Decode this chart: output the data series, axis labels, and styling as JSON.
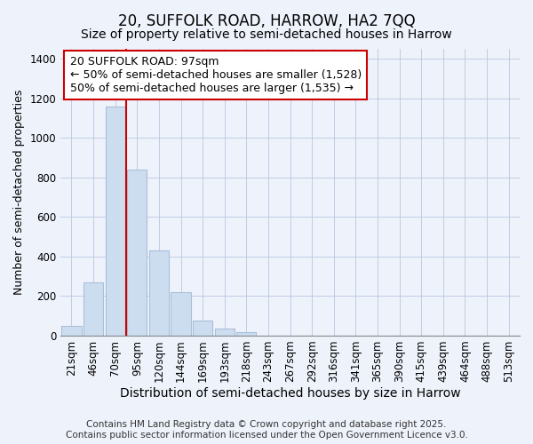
{
  "title": "20, SUFFOLK ROAD, HARROW, HA2 7QQ",
  "subtitle": "Size of property relative to semi-detached houses in Harrow",
  "xlabel": "Distribution of semi-detached houses by size in Harrow",
  "ylabel": "Number of semi-detached properties",
  "categories": [
    "21sqm",
    "46sqm",
    "70sqm",
    "95sqm",
    "120sqm",
    "144sqm",
    "169sqm",
    "193sqm",
    "218sqm",
    "243sqm",
    "267sqm",
    "292sqm",
    "316sqm",
    "341sqm",
    "365sqm",
    "390sqm",
    "415sqm",
    "439sqm",
    "464sqm",
    "488sqm",
    "513sqm"
  ],
  "values": [
    50,
    270,
    1160,
    840,
    430,
    220,
    75,
    35,
    20,
    0,
    0,
    0,
    0,
    0,
    0,
    0,
    0,
    0,
    0,
    0,
    0
  ],
  "bar_color": "#ccddf0",
  "bar_edge_color": "#aabfd8",
  "vline_x": 2.5,
  "vline_color": "#cc0000",
  "annotation_line1": "20 SUFFOLK ROAD: 97sqm",
  "annotation_line2": "← 50% of semi-detached houses are smaller (1,528)",
  "annotation_line3": "50% of semi-detached houses are larger (1,535) →",
  "annotation_box_facecolor": "#ffffff",
  "annotation_box_edgecolor": "#cc0000",
  "ylim": [
    0,
    1450
  ],
  "yticks": [
    0,
    200,
    400,
    600,
    800,
    1000,
    1200,
    1400
  ],
  "title_fontsize": 12,
  "subtitle_fontsize": 10,
  "annotation_fontsize": 9,
  "xlabel_fontsize": 10,
  "ylabel_fontsize": 9,
  "tick_fontsize": 8.5,
  "footer_text": "Contains HM Land Registry data © Crown copyright and database right 2025.\nContains public sector information licensed under the Open Government Licence v3.0.",
  "background_color": "#eef2fb",
  "plot_bg_color": "#eef2fb"
}
